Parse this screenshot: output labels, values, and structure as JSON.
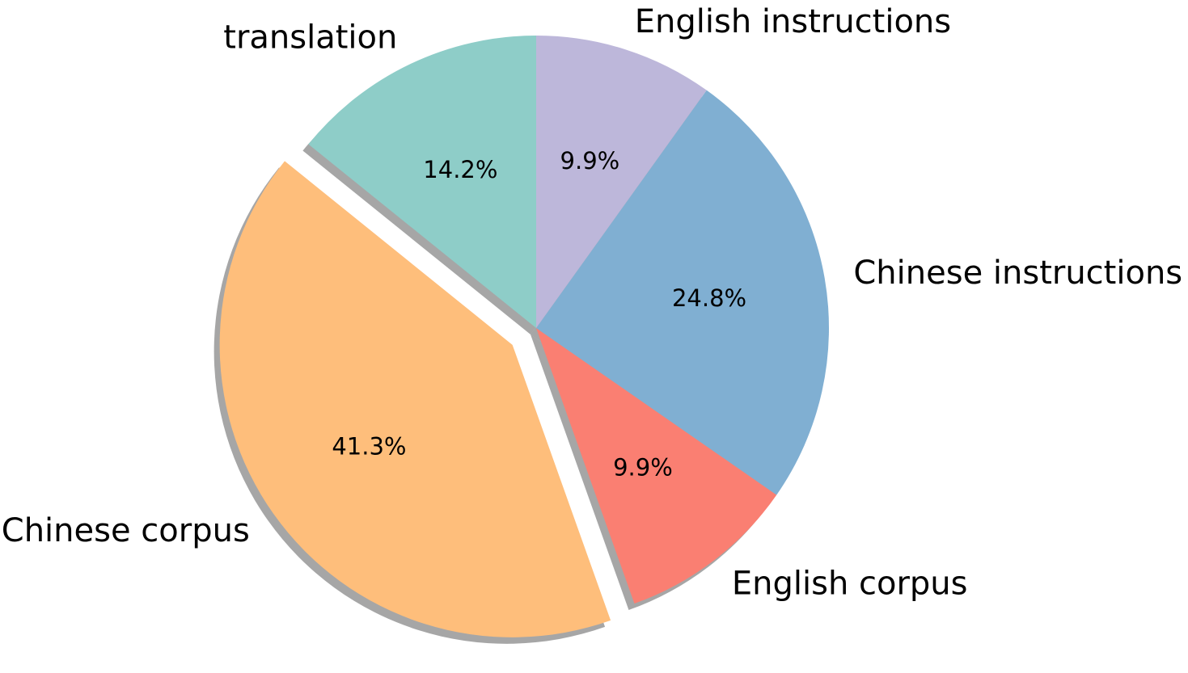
{
  "chart_data": {
    "type": "pie",
    "title": "",
    "start_angle_deg": 90,
    "direction": "counterclockwise",
    "shadow": true,
    "slices": [
      {
        "label": "translation",
        "value": 14.2,
        "pct_label": "14.2%",
        "color": "#8ecdc8",
        "explode": false
      },
      {
        "label": "Chinese corpus",
        "value": 41.3,
        "pct_label": "41.3%",
        "color": "#febe7b",
        "explode": true
      },
      {
        "label": "English corpus",
        "value": 9.9,
        "pct_label": "9.9%",
        "color": "#fa7f72",
        "explode": false
      },
      {
        "label": "Chinese instructions",
        "value": 24.8,
        "pct_label": "24.8%",
        "color": "#80afd2",
        "explode": false
      },
      {
        "label": "English instructions",
        "value": 9.9,
        "pct_label": "9.9%",
        "color": "#bdb7da",
        "explode": false
      }
    ]
  }
}
